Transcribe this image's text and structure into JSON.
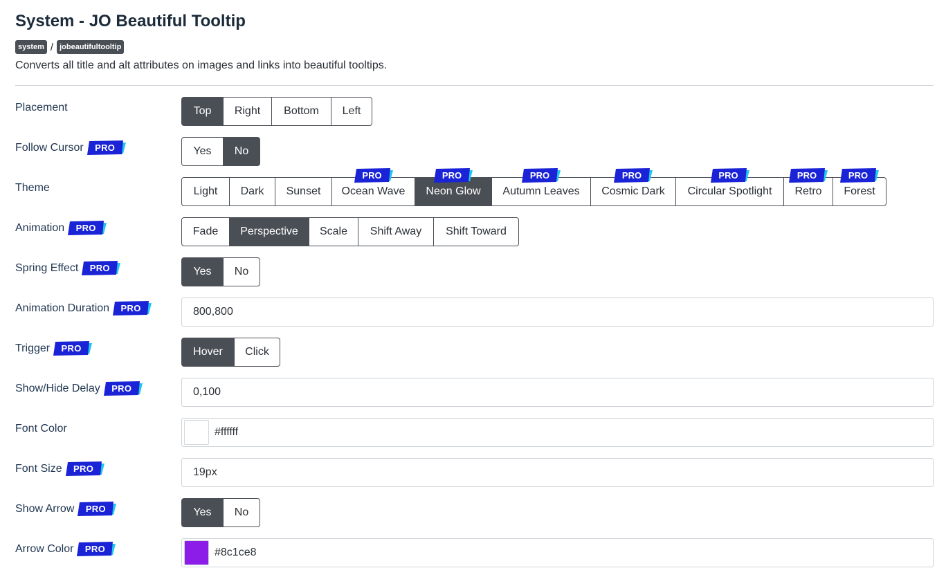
{
  "header": {
    "title": "System - JO Beautiful Tooltip",
    "crumb_1": "system",
    "crumb_sep": "/",
    "crumb_2": "jobeautifultooltip",
    "description": "Converts all title and alt attributes on images and links into beautiful tooltips."
  },
  "pro_label": "PRO",
  "colors": {
    "active": "#4a4f56",
    "pro": "#1a23d6",
    "pro_accent": "#22c7ef",
    "font_color": "#ffffff",
    "arrow_color": "#8c1ce8"
  },
  "fields": {
    "placement": {
      "label": "Placement",
      "options": [
        "Top",
        "Right",
        "Bottom",
        "Left"
      ],
      "selected": "Top"
    },
    "follow_cursor": {
      "label": "Follow Cursor",
      "options": [
        "Yes",
        "No"
      ],
      "selected": "No"
    },
    "theme": {
      "label": "Theme",
      "options": [
        "Light",
        "Dark",
        "Sunset",
        "Ocean Wave",
        "Neon Glow",
        "Autumn Leaves",
        "Cosmic Dark",
        "Circular Spotlight",
        "Retro",
        "Forest"
      ],
      "selected": "Neon Glow"
    },
    "animation": {
      "label": "Animation",
      "options": [
        "Fade",
        "Perspective",
        "Scale",
        "Shift Away",
        "Shift Toward"
      ],
      "selected": "Perspective"
    },
    "spring_effect": {
      "label": "Spring Effect",
      "options": [
        "Yes",
        "No"
      ],
      "selected": "Yes"
    },
    "animation_duration": {
      "label": "Animation Duration",
      "value": "800,800"
    },
    "trigger": {
      "label": "Trigger",
      "options": [
        "Hover",
        "Click"
      ],
      "selected": "Hover"
    },
    "show_hide_delay": {
      "label": "Show/Hide Delay",
      "value": "0,100"
    },
    "font_color": {
      "label": "Font Color",
      "value": "#ffffff"
    },
    "font_size": {
      "label": "Font Size",
      "value": "19px"
    },
    "show_arrow": {
      "label": "Show Arrow",
      "options": [
        "Yes",
        "No"
      ],
      "selected": "Yes"
    },
    "arrow_color": {
      "label": "Arrow Color",
      "value": "#8c1ce8"
    }
  }
}
